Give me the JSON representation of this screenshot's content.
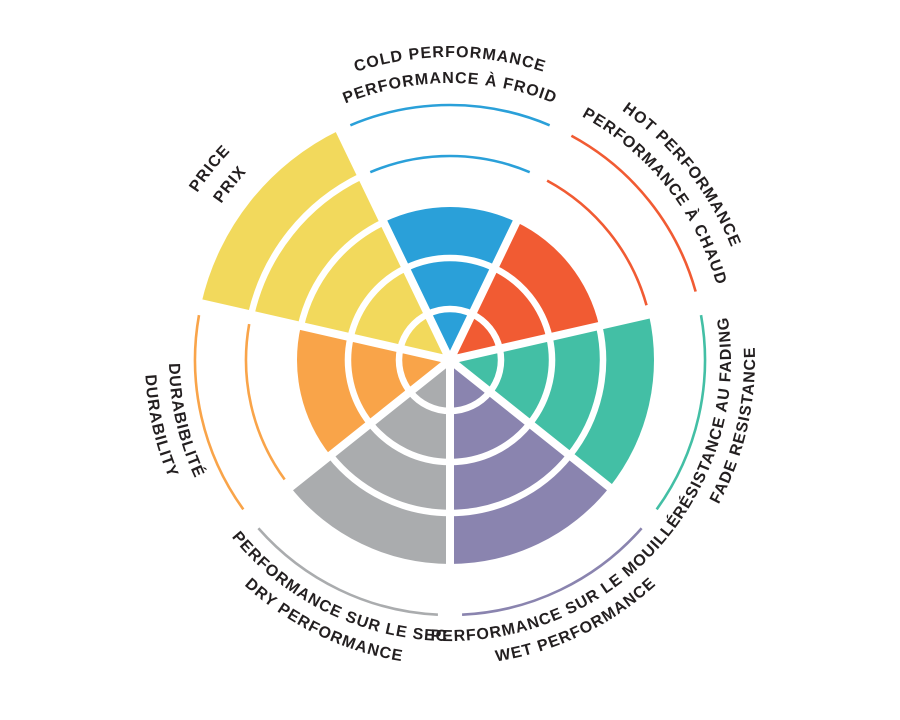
{
  "page": {
    "background": "#ffffff"
  },
  "chart_data": {
    "type": "radial-rating",
    "rings": 5,
    "max_rating": 5,
    "divider_color": "#ffffff",
    "label_color": "#231F20",
    "sectors": [
      {
        "id": "cold",
        "label_line1": "COLD PERFORMANCE",
        "label_line2": "PERFORMANCE À FROID",
        "value": 3,
        "color": "#2AA0D9",
        "label_orientation": "outward"
      },
      {
        "id": "hot",
        "label_line1": "HOT PERFORMANCE",
        "label_line2": "PERFORMANCE À CHAUD",
        "value": 3,
        "color": "#F15B33",
        "label_orientation": "outward"
      },
      {
        "id": "fade",
        "label_line1": "RÉSISTANCE AU FADING",
        "label_line2": "FADE RESISTANCE",
        "value": 4,
        "color": "#43BFA5",
        "label_orientation": "inward"
      },
      {
        "id": "wet",
        "label_line1": "PERFORMANCE SUR LE MOUILLÉ",
        "label_line2": "WET PERFORMANCE",
        "value": 4,
        "color": "#8A84AF",
        "label_orientation": "inward"
      },
      {
        "id": "dry",
        "label_line1": "PERFORMANCE SUR LE SEC",
        "label_line2": "DRY PERFORMANCE",
        "value": 4,
        "color": "#AAACAE",
        "label_orientation": "inward"
      },
      {
        "id": "durability",
        "label_line1": "DURABIBLITÉ",
        "label_line2": "DURABILITY",
        "value": 3,
        "color": "#F9A449",
        "label_orientation": "inward"
      },
      {
        "id": "price",
        "label_line1": "PRICE",
        "label_line2": "PRIX",
        "value": 5,
        "color": "#F2D95C",
        "label_orientation": "outward"
      }
    ]
  }
}
